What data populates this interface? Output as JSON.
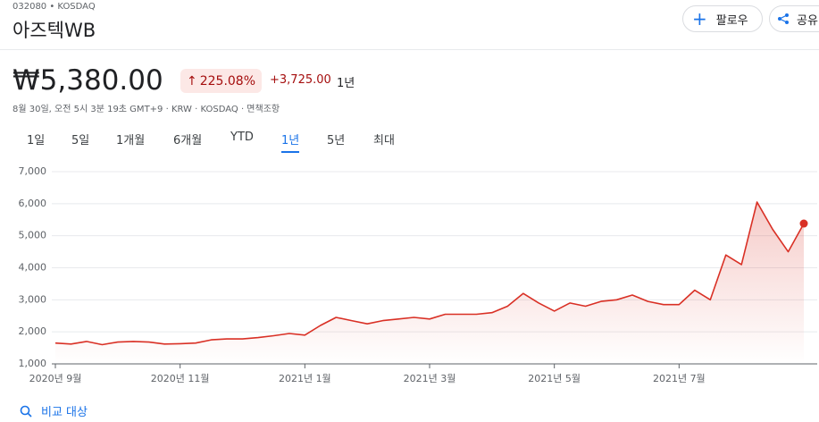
{
  "header": {
    "ticker": "032080 • KOSDAQ",
    "name": "아즈텍WB",
    "price": "₩5,380.00",
    "change_pct": "225.08%",
    "change_abs": "+3,725.00",
    "period": "1년",
    "meta": "8월 30일, 오전 5시 3분 19초 GMT+9 · KRW · KOSDAQ · 면책조항"
  },
  "buttons": {
    "follow": "팔로우",
    "share": "공유"
  },
  "tabs": [
    "1일",
    "5일",
    "1개월",
    "6개월",
    "YTD",
    "1년",
    "5년",
    "최대"
  ],
  "selected_tab": 5,
  "compare": "비교 대상",
  "chart_data": {
    "type": "line",
    "color": "#d93025",
    "categories": [
      "2020년 9월",
      null,
      null,
      null,
      null,
      null,
      null,
      null,
      "2020년 11월",
      null,
      null,
      null,
      null,
      null,
      null,
      null,
      "2021년 1월",
      null,
      null,
      null,
      null,
      null,
      null,
      null,
      "2021년 3월",
      null,
      null,
      null,
      null,
      null,
      null,
      null,
      "2021년 5월",
      null,
      null,
      null,
      null,
      null,
      null,
      null,
      "2021년 7월",
      null,
      null,
      null,
      null,
      null,
      null,
      null,
      null
    ],
    "values": [
      1650,
      1620,
      1700,
      1600,
      1680,
      1700,
      1680,
      1620,
      1630,
      1650,
      1750,
      1780,
      1780,
      1820,
      1880,
      1950,
      1900,
      2200,
      2450,
      2350,
      2250,
      2350,
      2400,
      2450,
      2400,
      2550,
      2550,
      2550,
      2600,
      2800,
      3200,
      2900,
      2650,
      2900,
      2800,
      2950,
      3000,
      3150,
      2950,
      2850,
      2850,
      3300,
      3000,
      4400,
      4100,
      6050,
      5200,
      4500,
      5380
    ],
    "ylim": [
      1000,
      7000
    ],
    "yticks": [
      {
        "value": 1000,
        "label": "1,000"
      },
      {
        "value": 2000,
        "label": "2,000"
      },
      {
        "value": 3000,
        "label": "3,000"
      },
      {
        "value": 4000,
        "label": "4,000"
      },
      {
        "value": 5000,
        "label": "5,000"
      },
      {
        "value": 6000,
        "label": "6,000"
      },
      {
        "value": 7000,
        "label": "7,000"
      }
    ],
    "grid": true
  }
}
